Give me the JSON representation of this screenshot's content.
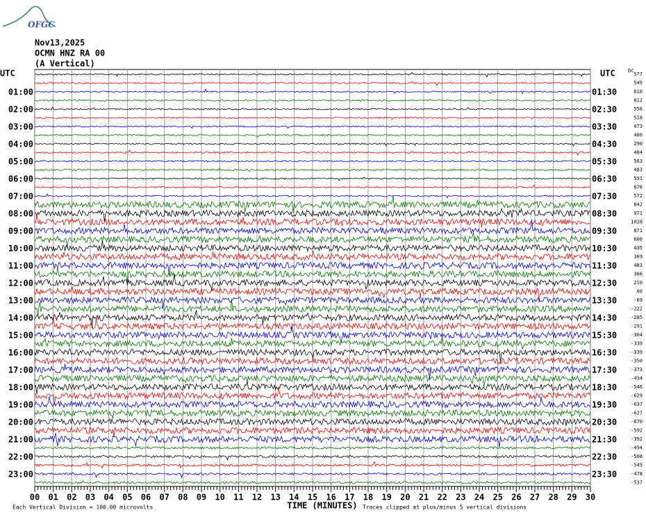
{
  "logo": "OFGC",
  "header": {
    "date": "Nov13,2025",
    "station": "OCMN HNZ RA 00",
    "component": "(A Vertical)"
  },
  "left_axis": {
    "title": "UTC",
    "labels": [
      "01:00",
      "02:00",
      "03:00",
      "04:00",
      "05:00",
      "06:00",
      "07:00",
      "08:00",
      "09:00",
      "10:00",
      "11:00",
      "12:00",
      "13:00",
      "14:00",
      "15:00",
      "16:00",
      "17:00",
      "18:00",
      "19:00",
      "20:00",
      "21:00",
      "22:00",
      "23:00"
    ]
  },
  "right_axis": {
    "title": "UTC",
    "labels": [
      "01:30",
      "02:30",
      "03:30",
      "04:30",
      "05:30",
      "06:30",
      "07:30",
      "08:30",
      "09:30",
      "10:30",
      "11:30",
      "12:30",
      "13:30",
      "14:30",
      "15:30",
      "16:30",
      "17:30",
      "18:30",
      "19:30",
      "20:30",
      "21:30",
      "22:30",
      "23:30"
    ]
  },
  "offsets": {
    "title": "DC",
    "values": [
      577,
      545,
      610,
      612,
      556,
      518,
      473,
      400,
      290,
      484,
      563,
      483,
      591,
      676,
      572,
      842,
      971,
      1028,
      871,
      600,
      435,
      369,
      483,
      366,
      210,
      60,
      -69,
      -222,
      -285,
      -291,
      -304,
      -339,
      -339,
      -350,
      -373,
      -434,
      -546,
      -629,
      -637,
      -627,
      -670,
      -592,
      -392,
      -454,
      -568,
      -545,
      -478,
      -537
    ]
  },
  "x_axis": {
    "ticks": [
      "00",
      "01",
      "02",
      "03",
      "04",
      "05",
      "06",
      "07",
      "08",
      "09",
      "10",
      "11",
      "12",
      "13",
      "14",
      "15",
      "16",
      "17",
      "18",
      "19",
      "20",
      "21",
      "22",
      "23",
      "24",
      "25",
      "26",
      "27",
      "28",
      "29",
      "30"
    ],
    "title": "TIME (MINUTES)"
  },
  "footer": {
    "scale": "Each Vertical Division =  100.00 microvolts",
    "clip": "Traces clipped at plus/minus 5 vertical divisions"
  }
}
